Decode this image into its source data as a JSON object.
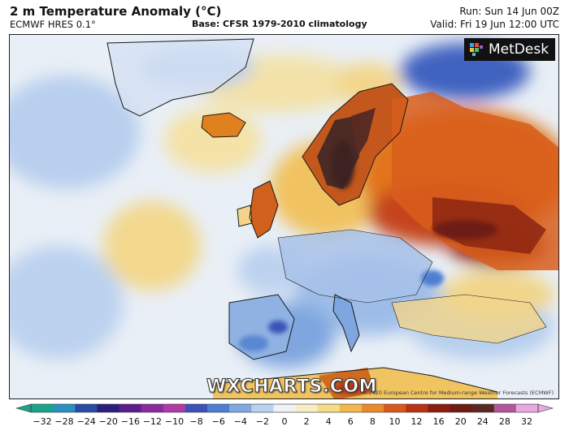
{
  "header": {
    "title": "2 m Temperature Anomaly (°C)",
    "model": "ECMWF HRES 0.1°",
    "base": "Base: CFSR 1979-2010 climatology",
    "run": "Run: Sun 14 Jun 00Z",
    "valid": "Valid: Fri 19 Jun 12:00 UTC"
  },
  "logo": {
    "text": "MetDesk"
  },
  "watermark": "WXCHARTS.COM",
  "copyright": "©2020 European Centre for Medium-range Weather Forecasts (ECMWF)",
  "colorbar": {
    "ticks": [
      "−32",
      "−28",
      "−24",
      "−20",
      "−16",
      "−12",
      "−10",
      "−8",
      "−6",
      "−4",
      "−2",
      "0",
      "2",
      "4",
      "6",
      "8",
      "10",
      "12",
      "16",
      "20",
      "24",
      "28",
      "32"
    ],
    "colors": [
      "#1aa58a",
      "#2b8fc0",
      "#2a4aa8",
      "#2a1f7a",
      "#5a1f8a",
      "#8c2aa0",
      "#b03aa8",
      "#3b52b8",
      "#4e7fd1",
      "#7fa9e0",
      "#b8d3ef",
      "#eef2f6",
      "#f7efc4",
      "#f6dc84",
      "#f2b850",
      "#ea8a2a",
      "#d85a1a",
      "#b83412",
      "#8e1c10",
      "#6e1c12",
      "#5a2a20",
      "#b4569c",
      "#e8a8e0"
    ]
  },
  "map_colors": {
    "ocean": "#eef3f8",
    "land": "#f0e4a8",
    "cool": "#7aa6de",
    "cold": "#3b64c4",
    "warm": "#f2b04a",
    "hot": "#d8501c",
    "very_hot": "#8a2410",
    "extreme": "#4a2a24"
  }
}
